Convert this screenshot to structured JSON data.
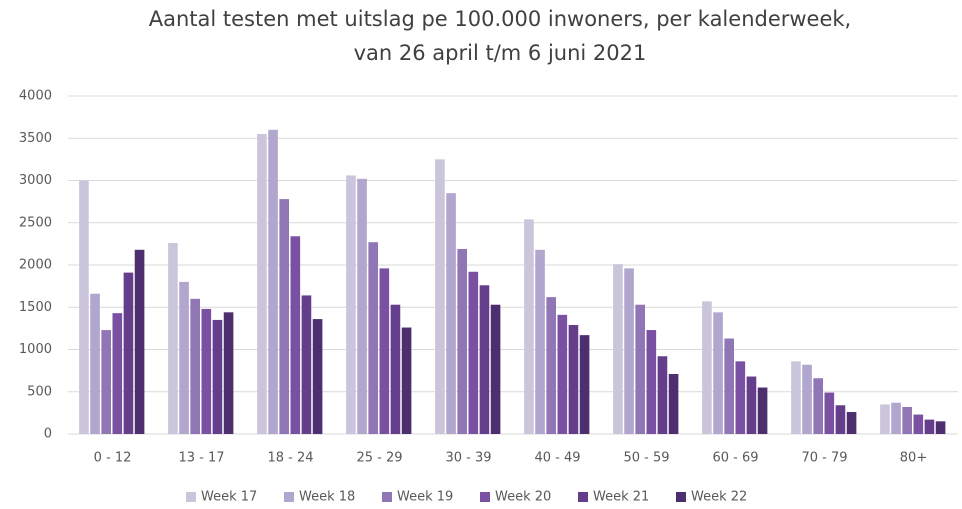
{
  "chart_data": {
    "type": "bar",
    "title": [
      "Aantal testen met  uitslag pe 100.000 inwoners, per kalenderweek,",
      "van 26 april t/m 6 juni 2021"
    ],
    "categories": [
      "0 - 12",
      "13 - 17",
      "18 - 24",
      "25 - 29",
      "30 - 39",
      "40 - 49",
      "50 - 59",
      "60 - 69",
      "70 - 79",
      "80+"
    ],
    "series": [
      {
        "name": "Week 17",
        "color": "#cbc5db",
        "values": [
          3000,
          2260,
          3550,
          3060,
          3250,
          2540,
          2010,
          1570,
          860,
          350
        ]
      },
      {
        "name": "Week 18",
        "color": "#b1a6cd",
        "values": [
          1660,
          1800,
          3600,
          3020,
          2850,
          2180,
          1960,
          1440,
          820,
          370
        ]
      },
      {
        "name": "Week 19",
        "color": "#9176b6",
        "values": [
          1230,
          1600,
          2780,
          2270,
          2190,
          1620,
          1530,
          1130,
          660,
          320
        ]
      },
      {
        "name": "Week 20",
        "color": "#7a50a3",
        "values": [
          1430,
          1480,
          2340,
          1960,
          1920,
          1410,
          1230,
          860,
          490,
          230
        ]
      },
      {
        "name": "Week 21",
        "color": "#653e8b",
        "values": [
          1910,
          1350,
          1640,
          1530,
          1760,
          1290,
          920,
          680,
          340,
          170
        ]
      },
      {
        "name": "Week 22",
        "color": "#4d2f6f",
        "values": [
          2180,
          1440,
          1360,
          1260,
          1530,
          1170,
          710,
          550,
          260,
          150
        ]
      }
    ],
    "ylim": [
      0,
      4000
    ],
    "yticks": [
      0,
      500,
      1000,
      1500,
      2000,
      2500,
      3000,
      3500,
      4000
    ],
    "grid": true,
    "legend": "bottom"
  }
}
